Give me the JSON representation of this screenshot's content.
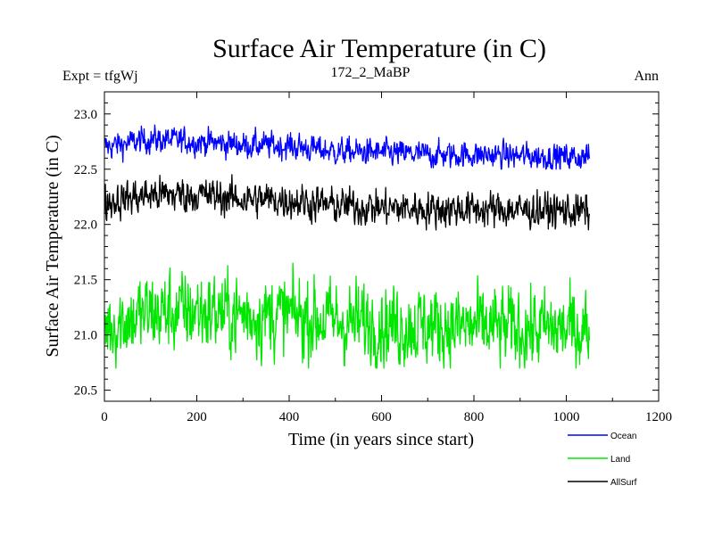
{
  "chart_data": {
    "type": "line",
    "title": "Surface Air Temperature (in C)",
    "subtitle_left": "Expt = tfgWj",
    "subtitle_center": "172_2_MaBP",
    "subtitle_right": "Ann",
    "xlabel": "Time (in years since start)",
    "ylabel": "Surface Air Temperature (in C)",
    "xlim": [
      0,
      1200
    ],
    "ylim": [
      20.4,
      23.2
    ],
    "xticks": [
      0,
      200,
      400,
      600,
      800,
      1000,
      1200
    ],
    "yticks": [
      20.5,
      21.0,
      21.5,
      22.0,
      22.5,
      23.0
    ],
    "ytick_labels": [
      "20.5",
      "21.0",
      "21.5",
      "22.0",
      "22.5",
      "23.0"
    ],
    "year_range": [
      0,
      1050
    ],
    "legend_position": "bottom-right",
    "series": [
      {
        "name": "Ocean",
        "color": "#0000ff",
        "approx_mean_by_century": [
          22.7,
          22.77,
          22.75,
          22.72,
          22.71,
          22.66,
          22.65,
          22.63,
          22.63,
          22.62,
          22.61
        ],
        "approx_range": [
          22.5,
          22.9
        ],
        "step_change_year": 480
      },
      {
        "name": "Land",
        "color": "#00e600",
        "approx_mean_by_century": [
          21.08,
          21.2,
          21.22,
          21.18,
          21.18,
          21.12,
          21.1,
          21.08,
          21.07,
          21.05,
          21.05
        ],
        "approx_range": [
          20.7,
          21.65
        ],
        "step_change_year": 480
      },
      {
        "name": "AllSurf",
        "color": "#000000",
        "approx_mean_by_century": [
          22.2,
          22.27,
          22.27,
          22.23,
          22.22,
          22.17,
          22.15,
          22.14,
          22.14,
          22.13,
          22.12
        ],
        "approx_range": [
          21.95,
          22.45
        ],
        "step_change_year": 480
      }
    ]
  }
}
